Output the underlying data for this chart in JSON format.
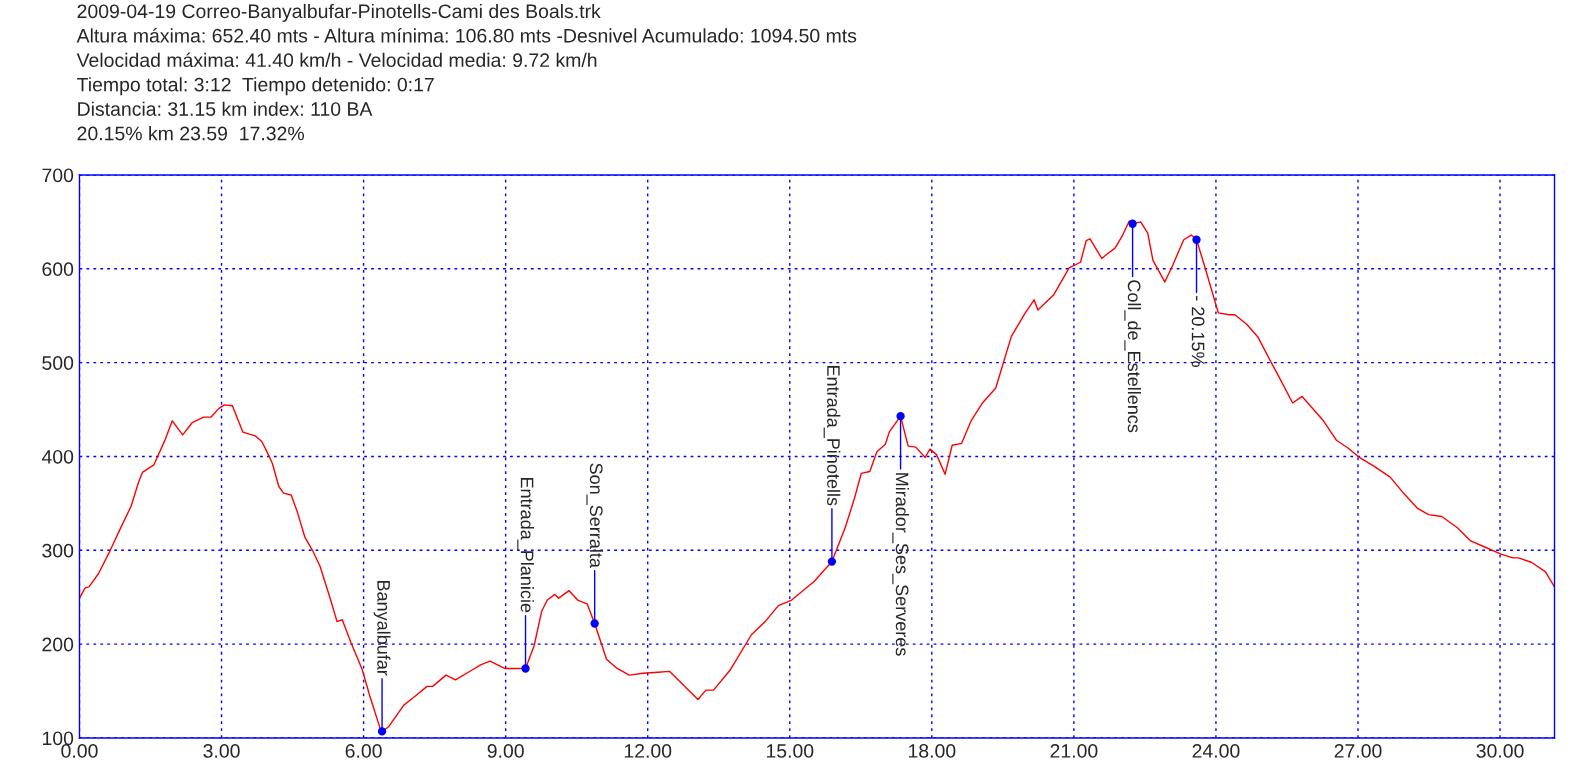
{
  "chart_data": {
    "type": "line",
    "title": "2009-04-19 Correo-Banyalbufar-Pinotells-Cami des Boals.trk",
    "xlim": [
      0,
      31.15
    ],
    "ylim": [
      100,
      700
    ],
    "xticks": [
      {
        "value": 0,
        "label": "0.00"
      },
      {
        "value": 3,
        "label": "3.00"
      },
      {
        "value": 6,
        "label": "6.00"
      },
      {
        "value": 9,
        "label": "9.00"
      },
      {
        "value": 12,
        "label": "12.00"
      },
      {
        "value": 15,
        "label": "15.00"
      },
      {
        "value": 18,
        "label": "18.00"
      },
      {
        "value": 21,
        "label": "21.00"
      },
      {
        "value": 24,
        "label": "24.00"
      },
      {
        "value": 27,
        "label": "27.00"
      },
      {
        "value": 30,
        "label": "30.00"
      }
    ],
    "yticks": [
      100,
      200,
      300,
      400,
      500,
      600,
      700
    ],
    "grid": true,
    "marker": "none",
    "line_style": "solid",
    "series": [
      {
        "color": "#ff0000",
        "x": [
          0,
          0.12,
          0.2,
          0.4,
          0.65,
          0.89,
          1.09,
          1.25,
          1.33,
          1.57,
          1.81,
          1.96,
          2.18,
          2.38,
          2.62,
          2.78,
          2.94,
          3.06,
          3.23,
          3.45,
          3.71,
          3.85,
          3.95,
          4.07,
          4.21,
          4.31,
          4.47,
          4.6,
          4.76,
          4.92,
          5.08,
          5.28,
          5.44,
          5.55,
          5.73,
          5.97,
          6.13,
          6.35,
          6.39,
          6.53,
          6.85,
          7.1,
          7.34,
          7.46,
          7.74,
          7.94,
          8.31,
          8.47,
          8.67,
          8.99,
          9.42,
          9.6,
          9.76,
          9.88,
          10.04,
          10.12,
          10.34,
          10.52,
          10.72,
          10.88,
          11.13,
          11.33,
          11.61,
          11.9,
          12.22,
          12.46,
          12.62,
          13.06,
          13.23,
          13.39,
          13.75,
          14.19,
          14.48,
          14.76,
          15.04,
          15.52,
          15.89,
          16.17,
          16.37,
          16.51,
          16.69,
          16.84,
          17.02,
          17.1,
          17.34,
          17.5,
          17.66,
          17.86,
          17.96,
          18.1,
          18.28,
          18.43,
          18.63,
          18.83,
          19.07,
          19.35,
          19.68,
          19.96,
          20.16,
          20.24,
          20.57,
          20.9,
          21.14,
          21.26,
          21.34,
          21.59,
          21.71,
          21.87,
          22.03,
          22.17,
          22.24,
          22.41,
          22.56,
          22.67,
          22.92,
          23.08,
          23.32,
          23.48,
          23.59,
          23.76,
          24.05,
          24.28,
          24.4,
          24.65,
          24.89,
          25.18,
          25.34,
          25.62,
          25.82,
          26.27,
          26.55,
          26.79,
          27.03,
          27.36,
          27.68,
          27.96,
          28.25,
          28.49,
          28.77,
          29.1,
          29.38,
          29.7,
          30.02,
          30.27,
          30.39,
          30.67,
          30.96,
          31.15
        ],
        "values": [
          249,
          260,
          261,
          275,
          300,
          326,
          347,
          373,
          383,
          391,
          418,
          438,
          423,
          436,
          442,
          442,
          451,
          455,
          454,
          426,
          422,
          416,
          406,
          393,
          368,
          361,
          359,
          341,
          314,
          300,
          283,
          251,
          224,
          226,
          202,
          173,
          145,
          110,
          107,
          112,
          135,
          145,
          155,
          155,
          167,
          162,
          173,
          178,
          182,
          174,
          174,
          198,
          235,
          247,
          253,
          249,
          257,
          247,
          243,
          222,
          184,
          175,
          167,
          169,
          170,
          171,
          163,
          141,
          151,
          151,
          173,
          210,
          224,
          241,
          247,
          267,
          288,
          324,
          356,
          382,
          384,
          405,
          413,
          426,
          443,
          411,
          410,
          399,
          408,
          402,
          381,
          412,
          414,
          438,
          457,
          473,
          528,
          552,
          567,
          556,
          572,
          601,
          607,
          630,
          632,
          611,
          616,
          622,
          636,
          651,
          648,
          650,
          638,
          609,
          586,
          603,
          631,
          636,
          631,
          603,
          553,
          551,
          551,
          541,
          527,
          499,
          484,
          457,
          464,
          438,
          417,
          409,
          399,
          389,
          378,
          361,
          345,
          338,
          336,
          324,
          310,
          303,
          296,
          292,
          292,
          287,
          277,
          261
        ]
      }
    ],
    "annotations": [
      "Altura máxima: 652.40 mts - Altura mínima: 106.80 mts -Desnivel Acumulado: 1094.50 mts",
      "Velocidad máxima: 41.40 km/h - Velocidad media: 9.72 km/h",
      "Tiempo total: 3:12  Tiempo detenido: 0:17",
      "Distancia: 31.15 km index: 110 BA",
      "20.15% km 23.59  17.32%",
      {
        "text": "Banyalbufar",
        "x": 6.39,
        "y": 107
      },
      {
        "text": "Entrada_Planicie",
        "x": 9.42,
        "y": 174
      },
      {
        "text": "Son_Serralta",
        "x": 10.88,
        "y": 222
      },
      {
        "text": "Entrada_Pinotells",
        "x": 15.89,
        "y": 288
      },
      {
        "text": "Mirador_Ses_Serveres",
        "x": 17.34,
        "y": 443
      },
      {
        "text": "Coll_de_Estellencs",
        "x": 22.24,
        "y": 648
      },
      {
        "text": "- 20.15%",
        "x": 23.59,
        "y": 631
      }
    ]
  }
}
